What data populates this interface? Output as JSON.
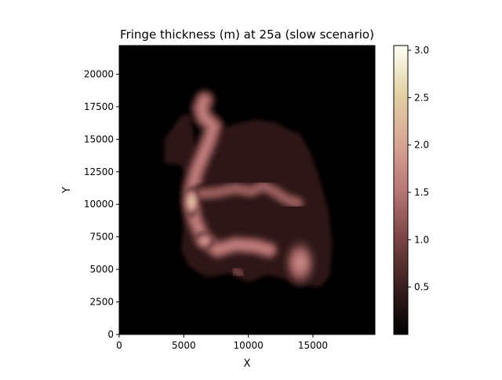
{
  "chart_data": {
    "type": "heatmap",
    "title": "Fringe thickness (m) at 25a (slow scenario)",
    "xlabel": "X",
    "ylabel": "Y",
    "xlim": [
      0,
      19800
    ],
    "ylim": [
      0,
      22200
    ],
    "x_ticks": [
      0,
      5000,
      10000,
      15000
    ],
    "y_ticks": [
      0,
      2500,
      5000,
      7500,
      10000,
      12500,
      15000,
      17500,
      20000
    ],
    "colorbar": {
      "range": [
        0.0,
        3.05
      ],
      "ticks": [
        0.5,
        1.0,
        1.5,
        2.0,
        2.5,
        3.0
      ],
      "colormap": [
        "#000000",
        "#3a1f1f",
        "#7a4444",
        "#b97777",
        "#d9a695",
        "#e2d2a4",
        "#fffff6"
      ]
    },
    "background_color": "#000000",
    "faint_zone_color": "#2e1512",
    "faint_zone": [
      [
        3500,
        15000
      ],
      [
        4800,
        16800
      ],
      [
        5500,
        17000
      ],
      [
        6000,
        14000
      ],
      [
        7500,
        15700
      ],
      [
        9000,
        16200
      ],
      [
        10500,
        16500
      ],
      [
        12000,
        16300
      ],
      [
        13000,
        15800
      ],
      [
        14000,
        15400
      ],
      [
        14800,
        14000
      ],
      [
        15500,
        12000
      ],
      [
        16200,
        9500
      ],
      [
        16500,
        7000
      ],
      [
        16300,
        4500
      ],
      [
        15500,
        3600
      ],
      [
        14500,
        3800
      ],
      [
        13000,
        4200
      ],
      [
        11500,
        4600
      ],
      [
        10000,
        4000
      ],
      [
        8500,
        4700
      ],
      [
        6800,
        4400
      ],
      [
        5400,
        5200
      ],
      [
        4800,
        6500
      ],
      [
        5000,
        8500
      ],
      [
        5300,
        11500
      ],
      [
        4800,
        13000
      ],
      [
        3500,
        13200
      ]
    ],
    "features": [
      {
        "kind": "ribbon",
        "width": 800,
        "peak": 1.6,
        "path": [
          [
            6600,
            18000
          ],
          [
            6350,
            17400
          ],
          [
            6550,
            16700
          ],
          [
            7300,
            16000
          ],
          [
            7000,
            15000
          ],
          [
            6500,
            13800
          ],
          [
            6000,
            12600
          ],
          [
            5650,
            11300
          ],
          [
            5600,
            10000
          ],
          [
            5900,
            8700
          ],
          [
            6500,
            7400
          ],
          [
            7600,
            6500
          ],
          [
            9000,
            6900
          ],
          [
            10500,
            6800
          ],
          [
            11600,
            6500
          ]
        ]
      },
      {
        "kind": "ribbon",
        "width": 650,
        "peak": 1.3,
        "path": [
          [
            6300,
            10800
          ],
          [
            7500,
            10900
          ],
          [
            9000,
            11200
          ],
          [
            10200,
            11000
          ],
          [
            11200,
            11400
          ],
          [
            12000,
            11000
          ],
          [
            12900,
            10400
          ],
          [
            13800,
            10100
          ]
        ]
      },
      {
        "kind": "ribbon",
        "width": 450,
        "peak": 1.0,
        "path": [
          [
            8900,
            5000
          ],
          [
            9500,
            4600
          ]
        ]
      },
      {
        "kind": "blob",
        "x": 14000,
        "y": 5500,
        "rx": 900,
        "ry": 1300,
        "peak": 1.7
      },
      {
        "kind": "blob",
        "x": 5600,
        "y": 10200,
        "rx": 450,
        "ry": 850,
        "peak": 2.4
      },
      {
        "kind": "blob",
        "x": 6600,
        "y": 7200,
        "rx": 600,
        "ry": 500,
        "peak": 1.9
      }
    ]
  }
}
